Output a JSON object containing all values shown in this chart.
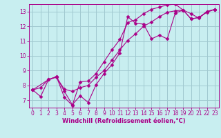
{
  "xlabel": "Windchill (Refroidissement éolien,°C)",
  "bg_color": "#c8eef0",
  "grid_color": "#a0c8d0",
  "line_color": "#aa0088",
  "xlim": [
    -0.5,
    23.5
  ],
  "ylim": [
    6.5,
    13.5
  ],
  "xticks": [
    0,
    1,
    2,
    3,
    4,
    5,
    6,
    7,
    8,
    9,
    10,
    11,
    12,
    13,
    14,
    15,
    16,
    17,
    18,
    19,
    20,
    21,
    22,
    23
  ],
  "yticks": [
    7,
    8,
    9,
    10,
    11,
    12,
    13
  ],
  "line1_x": [
    0,
    1,
    2,
    3,
    4,
    5,
    6,
    7,
    8,
    9,
    10,
    11,
    12,
    13,
    14,
    15,
    16,
    17,
    18,
    19,
    20,
    21,
    22,
    23
  ],
  "line1_y": [
    7.7,
    7.25,
    8.4,
    8.6,
    7.6,
    6.7,
    7.3,
    6.85,
    8.05,
    8.8,
    9.4,
    10.2,
    12.65,
    12.2,
    12.15,
    11.15,
    11.4,
    11.15,
    12.9,
    13.1,
    12.5,
    12.6,
    13.0,
    13.15
  ],
  "line2_x": [
    0,
    2,
    3,
    4,
    5,
    6,
    7,
    8,
    9,
    10,
    11,
    12,
    13,
    14,
    15,
    16,
    17,
    18,
    19,
    20,
    21,
    22,
    23
  ],
  "line2_y": [
    7.7,
    8.4,
    8.6,
    7.2,
    6.65,
    8.25,
    8.3,
    8.8,
    9.6,
    10.4,
    11.1,
    12.25,
    12.45,
    12.85,
    13.15,
    13.3,
    13.45,
    13.5,
    13.1,
    12.85,
    12.55,
    13.0,
    13.15
  ],
  "line3_x": [
    0,
    1,
    2,
    3,
    4,
    5,
    6,
    7,
    8,
    9,
    10,
    11,
    12,
    13,
    14,
    15,
    16,
    17,
    18,
    19,
    20,
    21,
    22,
    23
  ],
  "line3_y": [
    7.7,
    7.85,
    8.4,
    8.55,
    7.75,
    7.6,
    7.85,
    8.0,
    8.55,
    9.0,
    9.7,
    10.4,
    11.05,
    11.5,
    12.0,
    12.3,
    12.65,
    12.95,
    13.05,
    13.1,
    12.5,
    12.6,
    12.95,
    13.15
  ],
  "tick_fontsize": 5.5,
  "xlabel_fontsize": 6.0,
  "marker_size": 2.5,
  "line_width": 0.8
}
